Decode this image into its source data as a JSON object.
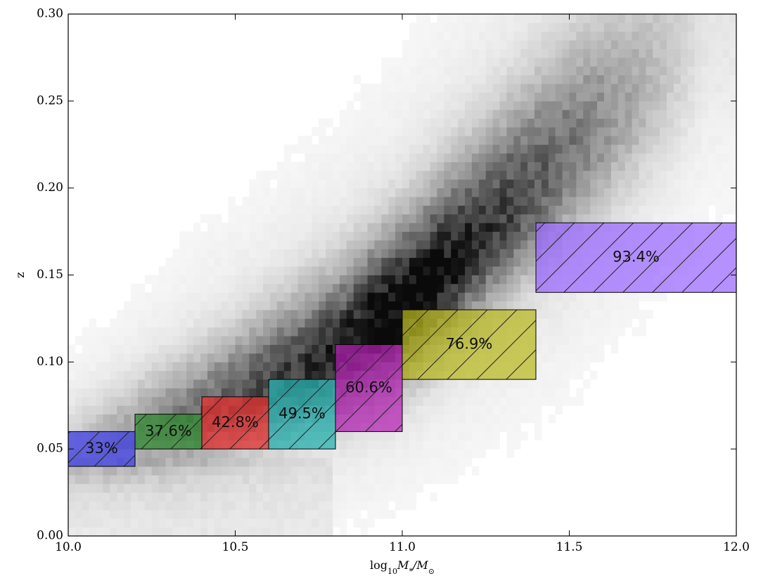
{
  "chart_data": {
    "type": "heatmap",
    "title": "",
    "xlabel": "log10 M*/M☉",
    "xlabel_main": "log",
    "xlabel_sub": "10",
    "xlabel_mass": "M",
    "xlabel_star": "*",
    "xlabel_slash": "/M",
    "xlabel_sun": "⊙",
    "ylabel": "z",
    "xlim": [
      10.0,
      12.0
    ],
    "ylim": [
      0.0,
      0.3
    ],
    "xticks": [
      "10.0",
      "10.5",
      "11.0",
      "11.5",
      "12.0"
    ],
    "xtick_values": [
      10.0,
      10.5,
      11.0,
      11.5,
      12.0
    ],
    "yticks": [
      "0.00",
      "0.05",
      "0.10",
      "0.15",
      "0.20",
      "0.25",
      "0.30"
    ],
    "ytick_values": [
      0.0,
      0.05,
      0.1,
      0.15,
      0.2,
      0.25,
      0.3
    ],
    "grid": false,
    "background": {
      "description_colormap": "greys",
      "ridge": [
        [
          10.0,
          0.045
        ],
        [
          10.4,
          0.07
        ],
        [
          10.8,
          0.105
        ],
        [
          11.0,
          0.13
        ],
        [
          11.2,
          0.165
        ],
        [
          11.5,
          0.22
        ],
        [
          11.8,
          0.27
        ]
      ]
    },
    "boxes": [
      {
        "label": "33%",
        "x0": 10.0,
        "x1": 10.2,
        "y0": 0.04,
        "y1": 0.06,
        "color": "#3b3be8"
      },
      {
        "label": "37.6%",
        "x0": 10.2,
        "x1": 10.4,
        "y0": 0.05,
        "y1": 0.07,
        "color": "#2e8b2e"
      },
      {
        "label": "42.8%",
        "x0": 10.4,
        "x1": 10.6,
        "y0": 0.05,
        "y1": 0.08,
        "color": "#e82b2b"
      },
      {
        "label": "49.5%",
        "x0": 10.6,
        "x1": 10.8,
        "y0": 0.05,
        "y1": 0.09,
        "color": "#21b0b0"
      },
      {
        "label": "60.6%",
        "x0": 10.8,
        "x1": 11.0,
        "y0": 0.06,
        "y1": 0.11,
        "color": "#b31fb3"
      },
      {
        "label": "76.9%",
        "x0": 11.0,
        "x1": 11.4,
        "y0": 0.09,
        "y1": 0.13,
        "color": "#b8b81f"
      },
      {
        "label": "93.4%",
        "x0": 11.4,
        "x1": 12.0,
        "y0": 0.14,
        "y1": 0.18,
        "color": "#9966ff"
      }
    ]
  }
}
